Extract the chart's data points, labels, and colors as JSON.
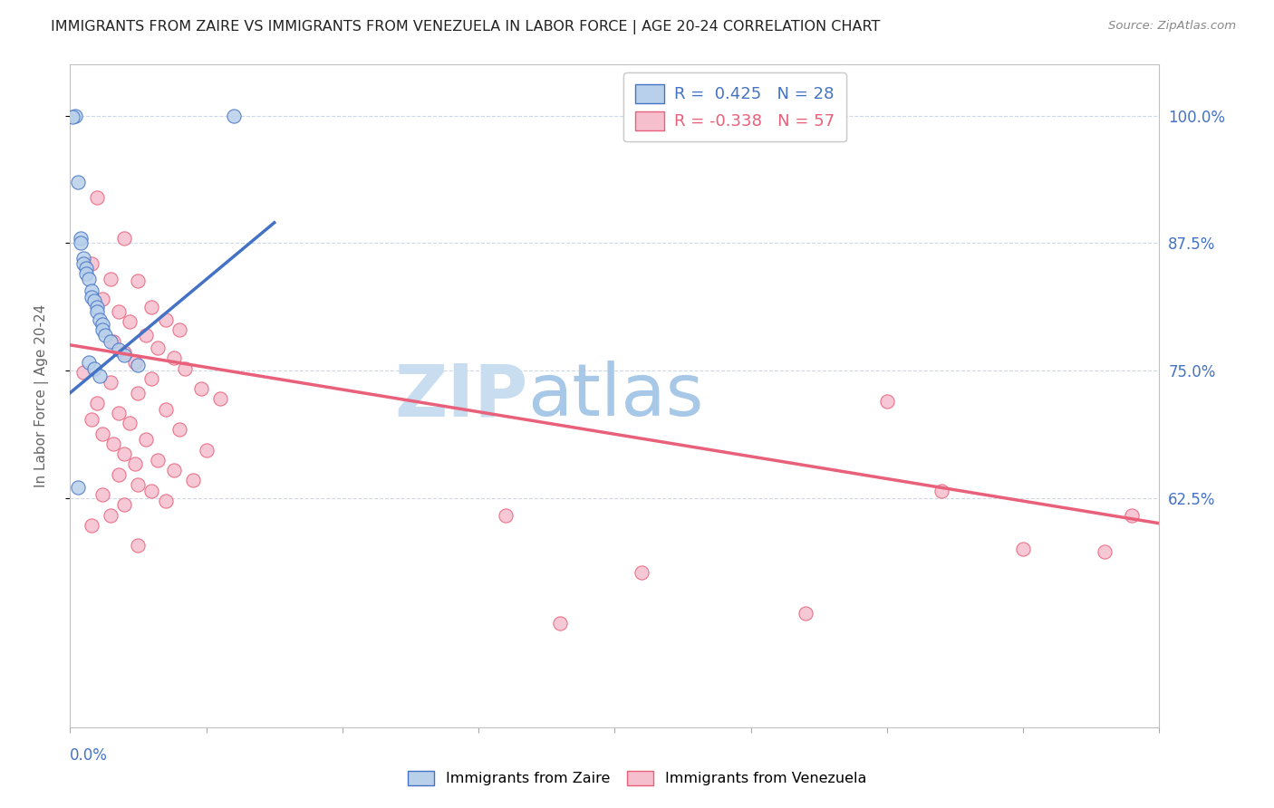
{
  "title": "IMMIGRANTS FROM ZAIRE VS IMMIGRANTS FROM VENEZUELA IN LABOR FORCE | AGE 20-24 CORRELATION CHART",
  "source": "Source: ZipAtlas.com",
  "ylabel": "In Labor Force | Age 20-24",
  "right_yticks": [
    0.625,
    0.75,
    0.875,
    1.0
  ],
  "right_yticklabels": [
    "62.5%",
    "75.0%",
    "87.5%",
    "100.0%"
  ],
  "xmin": 0.0,
  "xmax": 0.4,
  "ymin": 0.4,
  "ymax": 1.05,
  "zaire_color": "#b8d0ea",
  "venezuela_color": "#f5bfce",
  "zaire_line_color": "#4472c4",
  "venezuela_line_color": "#e8607a",
  "ref_line_color": "#c8c8c8",
  "legend_zaire_label": "R =  0.425   N = 28",
  "legend_venezuela_label": "R = -0.338   N = 57",
  "watermark_zip": "ZIP",
  "watermark_atlas": "atlas",
  "watermark_color_zip": "#c8ddf0",
  "watermark_color_atlas": "#a8c8e8",
  "zaire_trend_x": [
    0.0,
    0.075
  ],
  "zaire_trend_y": [
    0.728,
    0.895
  ],
  "venezuela_trend_x": [
    0.0,
    0.4
  ],
  "venezuela_trend_y": [
    0.775,
    0.6
  ],
  "ref_line_x": [
    0.0,
    0.4
  ],
  "ref_line_y": [
    0.0,
    0.4
  ],
  "zaire_points": [
    [
      0.002,
      1.0
    ],
    [
      0.001,
      0.999
    ],
    [
      0.003,
      0.935
    ],
    [
      0.004,
      0.88
    ],
    [
      0.004,
      0.875
    ],
    [
      0.005,
      0.86
    ],
    [
      0.005,
      0.855
    ],
    [
      0.006,
      0.85
    ],
    [
      0.006,
      0.845
    ],
    [
      0.007,
      0.84
    ],
    [
      0.008,
      0.828
    ],
    [
      0.008,
      0.822
    ],
    [
      0.009,
      0.818
    ],
    [
      0.01,
      0.812
    ],
    [
      0.01,
      0.808
    ],
    [
      0.011,
      0.8
    ],
    [
      0.012,
      0.795
    ],
    [
      0.012,
      0.79
    ],
    [
      0.013,
      0.785
    ],
    [
      0.015,
      0.778
    ],
    [
      0.018,
      0.77
    ],
    [
      0.02,
      0.765
    ],
    [
      0.025,
      0.755
    ],
    [
      0.003,
      0.635
    ],
    [
      0.06,
      1.0
    ],
    [
      0.007,
      0.758
    ],
    [
      0.009,
      0.752
    ],
    [
      0.011,
      0.745
    ]
  ],
  "venezuela_points": [
    [
      0.01,
      0.92
    ],
    [
      0.02,
      0.88
    ],
    [
      0.008,
      0.855
    ],
    [
      0.015,
      0.84
    ],
    [
      0.025,
      0.838
    ],
    [
      0.012,
      0.82
    ],
    [
      0.03,
      0.812
    ],
    [
      0.018,
      0.808
    ],
    [
      0.035,
      0.8
    ],
    [
      0.022,
      0.798
    ],
    [
      0.04,
      0.79
    ],
    [
      0.028,
      0.785
    ],
    [
      0.016,
      0.778
    ],
    [
      0.032,
      0.772
    ],
    [
      0.02,
      0.768
    ],
    [
      0.038,
      0.762
    ],
    [
      0.024,
      0.758
    ],
    [
      0.042,
      0.752
    ],
    [
      0.005,
      0.748
    ],
    [
      0.03,
      0.742
    ],
    [
      0.015,
      0.738
    ],
    [
      0.048,
      0.732
    ],
    [
      0.025,
      0.728
    ],
    [
      0.055,
      0.722
    ],
    [
      0.01,
      0.718
    ],
    [
      0.035,
      0.712
    ],
    [
      0.018,
      0.708
    ],
    [
      0.008,
      0.702
    ],
    [
      0.022,
      0.698
    ],
    [
      0.04,
      0.692
    ],
    [
      0.012,
      0.688
    ],
    [
      0.028,
      0.682
    ],
    [
      0.016,
      0.678
    ],
    [
      0.05,
      0.672
    ],
    [
      0.02,
      0.668
    ],
    [
      0.032,
      0.662
    ],
    [
      0.024,
      0.658
    ],
    [
      0.038,
      0.652
    ],
    [
      0.018,
      0.648
    ],
    [
      0.045,
      0.642
    ],
    [
      0.025,
      0.638
    ],
    [
      0.03,
      0.632
    ],
    [
      0.012,
      0.628
    ],
    [
      0.035,
      0.622
    ],
    [
      0.02,
      0.618
    ],
    [
      0.015,
      0.608
    ],
    [
      0.008,
      0.598
    ],
    [
      0.025,
      0.578
    ],
    [
      0.3,
      0.72
    ],
    [
      0.32,
      0.632
    ],
    [
      0.35,
      0.575
    ],
    [
      0.16,
      0.608
    ],
    [
      0.21,
      0.552
    ],
    [
      0.27,
      0.512
    ],
    [
      0.39,
      0.608
    ],
    [
      0.38,
      0.572
    ],
    [
      0.18,
      0.502
    ]
  ]
}
